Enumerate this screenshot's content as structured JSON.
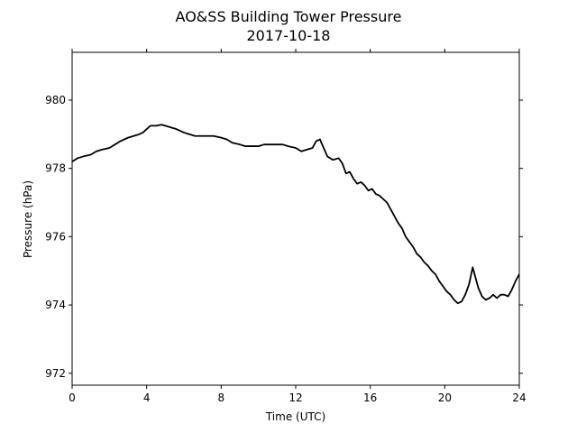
{
  "chart_data": {
    "type": "line",
    "title": "AO&SS Building Tower Pressure",
    "subtitle": "2017-10-18",
    "xlabel": "Time (UTC)",
    "ylabel": "Pressure (hPa)",
    "xlim": [
      0,
      24
    ],
    "ylim": [
      971.65,
      981.4
    ],
    "xticks": [
      0,
      4,
      8,
      12,
      16,
      20,
      24
    ],
    "yticks": [
      972,
      974,
      976,
      978,
      980
    ],
    "grid": false,
    "line_color": "#000000",
    "series": [
      {
        "x": [
          0,
          0.3,
          0.6,
          1.0,
          1.3,
          1.6,
          2.0,
          2.3,
          2.6,
          3.0,
          3.3,
          3.6,
          3.8,
          4.0,
          4.2,
          4.5,
          4.8,
          5.0,
          5.3,
          5.6,
          6.0,
          6.3,
          6.6,
          7.0,
          7.3,
          7.6,
          8.0,
          8.3,
          8.6,
          9.0,
          9.3,
          9.6,
          10.0,
          10.3,
          10.6,
          11.0,
          11.3,
          11.6,
          12.0,
          12.3,
          12.6,
          12.9,
          13.1,
          13.3,
          13.5,
          13.7,
          14.0,
          14.3,
          14.5,
          14.7,
          14.9,
          15.1,
          15.3,
          15.5,
          15.7,
          15.9,
          16.1,
          16.3,
          16.5,
          16.7,
          16.9,
          17.1,
          17.3,
          17.5,
          17.7,
          17.9,
          18.1,
          18.3,
          18.5,
          18.7,
          18.9,
          19.1,
          19.3,
          19.5,
          19.7,
          19.9,
          20.1,
          20.3,
          20.5,
          20.7,
          20.9,
          21.1,
          21.3,
          21.5,
          21.6,
          21.8,
          22.0,
          22.2,
          22.4,
          22.6,
          22.8,
          23.0,
          23.2,
          23.4,
          23.6,
          23.8,
          24.0
        ],
        "values": [
          978.2,
          978.3,
          978.35,
          978.4,
          978.5,
          978.55,
          978.6,
          978.7,
          978.8,
          978.9,
          978.95,
          979.0,
          979.05,
          979.15,
          979.25,
          979.25,
          979.28,
          979.25,
          979.2,
          979.15,
          979.05,
          979.0,
          978.95,
          978.95,
          978.95,
          978.95,
          978.9,
          978.85,
          978.75,
          978.7,
          978.65,
          978.65,
          978.65,
          978.7,
          978.7,
          978.7,
          978.7,
          978.65,
          978.6,
          978.5,
          978.55,
          978.6,
          978.8,
          978.85,
          978.6,
          978.35,
          978.25,
          978.3,
          978.15,
          977.85,
          977.9,
          977.7,
          977.55,
          977.6,
          977.5,
          977.35,
          977.4,
          977.25,
          977.2,
          977.1,
          977.0,
          976.8,
          976.6,
          976.4,
          976.25,
          976.0,
          975.85,
          975.7,
          975.5,
          975.4,
          975.25,
          975.15,
          975.0,
          974.9,
          974.7,
          974.55,
          974.4,
          974.3,
          974.15,
          974.05,
          974.1,
          974.3,
          974.6,
          975.1,
          974.9,
          974.5,
          974.25,
          974.15,
          974.2,
          974.3,
          974.2,
          974.3,
          974.3,
          974.25,
          974.45,
          974.7,
          974.9
        ]
      }
    ]
  }
}
